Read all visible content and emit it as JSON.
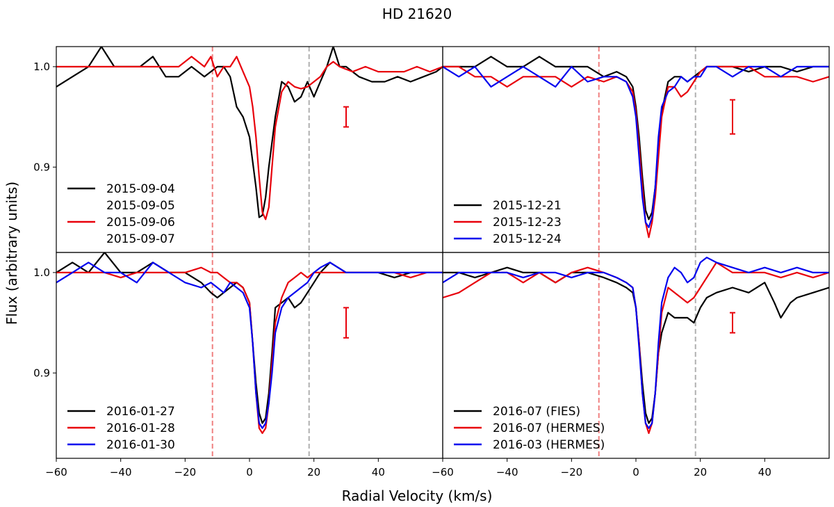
{
  "figure": {
    "title": "HD 21620",
    "xlabel": "Radial Velocity (km/s)",
    "ylabel": "Flux (arbitrary units)"
  },
  "chart_data": [
    {
      "type": "line",
      "panel": "top-left",
      "xlim": [
        -60,
        60
      ],
      "ylim": [
        0.815,
        1.02
      ],
      "xticks": [],
      "yticks": [
        "0.9",
        "1.0"
      ],
      "yticks_values": [
        0.9,
        1.0
      ],
      "vlines": [
        {
          "x": -11.5,
          "color": "#f08080"
        },
        {
          "x": 18.5,
          "color": "#b0b0b0"
        }
      ],
      "errorbar": {
        "x": 30,
        "y_low": 0.94,
        "y_high": 0.96,
        "color": "#e8000b"
      },
      "legend": {
        "position": "bottom-left",
        "entries": [
          "2015-09-04",
          "2015-09-05\n2015-09-06\n2015-09-07"
        ]
      },
      "series": [
        {
          "name": "2015-09-04",
          "color": "#000000",
          "x": [
            -60,
            -55,
            -50,
            -46,
            -42,
            -38,
            -34,
            -30,
            -26,
            -22,
            -18,
            -14,
            -10,
            -8,
            -6,
            -4,
            -2,
            0,
            2,
            3,
            4,
            5,
            6,
            8,
            10,
            12,
            14,
            16,
            18,
            20,
            22,
            24,
            26,
            28,
            30,
            34,
            38,
            42,
            46,
            50,
            54,
            58,
            60
          ],
          "y": [
            0.98,
            0.99,
            1.0,
            1.02,
            1.0,
            1.0,
            1.0,
            1.01,
            0.99,
            0.99,
            1.0,
            0.99,
            1.0,
            1.0,
            0.99,
            0.96,
            0.95,
            0.93,
            0.88,
            0.85,
            0.852,
            0.87,
            0.9,
            0.95,
            0.985,
            0.98,
            0.965,
            0.97,
            0.985,
            0.97,
            0.985,
            1.0,
            1.02,
            1.0,
            1.0,
            0.99,
            0.985,
            0.985,
            0.99,
            0.985,
            0.99,
            0.995,
            1.0
          ]
        },
        {
          "name": "2015-09-05 / 06 / 07",
          "color": "#e8000b",
          "x": [
            -60,
            -55,
            -50,
            -46,
            -42,
            -38,
            -34,
            -30,
            -26,
            -22,
            -18,
            -14,
            -12,
            -10,
            -8,
            -6,
            -4,
            -2,
            0,
            1,
            2,
            3,
            4,
            5,
            6,
            7,
            8,
            10,
            12,
            14,
            16,
            18,
            20,
            22,
            24,
            26,
            28,
            32,
            36,
            40,
            44,
            48,
            52,
            56,
            60
          ],
          "y": [
            1.0,
            1.0,
            1.0,
            1.0,
            1.0,
            1.0,
            1.0,
            1.0,
            1.0,
            1.0,
            1.01,
            1.0,
            1.01,
            0.99,
            1.0,
            1.0,
            1.01,
            0.995,
            0.98,
            0.96,
            0.93,
            0.89,
            0.855,
            0.848,
            0.86,
            0.9,
            0.94,
            0.975,
            0.985,
            0.98,
            0.978,
            0.98,
            0.985,
            0.99,
            1.0,
            1.005,
            1.0,
            0.995,
            1.0,
            0.995,
            0.995,
            0.995,
            1.0,
            0.995,
            1.0
          ]
        }
      ]
    },
    {
      "type": "line",
      "panel": "top-right",
      "xlim": [
        -60,
        60
      ],
      "ylim": [
        0.815,
        1.02
      ],
      "xticks": [],
      "yticks": [],
      "vlines": [
        {
          "x": -11.5,
          "color": "#f08080"
        },
        {
          "x": 18.5,
          "color": "#b0b0b0"
        }
      ],
      "errorbar": {
        "x": 30,
        "y_low": 0.933,
        "y_high": 0.967,
        "color": "#e8000b"
      },
      "legend": {
        "position": "bottom-left",
        "entries": [
          "2015-12-21",
          "2015-12-23",
          "2015-12-24"
        ]
      },
      "series": [
        {
          "name": "2015-12-21",
          "color": "#000000",
          "x": [
            -60,
            -55,
            -50,
            -45,
            -40,
            -35,
            -30,
            -25,
            -20,
            -15,
            -10,
            -6,
            -3,
            -1,
            0,
            1,
            2,
            3,
            4,
            5,
            6,
            7,
            8,
            10,
            12,
            14,
            16,
            18,
            20,
            22,
            25,
            30,
            35,
            40,
            45,
            50,
            55,
            60
          ],
          "y": [
            1.0,
            1.0,
            1.0,
            1.01,
            1.0,
            1.0,
            1.01,
            1.0,
            1.0,
            1.0,
            0.99,
            0.995,
            0.99,
            0.98,
            0.96,
            0.93,
            0.89,
            0.857,
            0.848,
            0.855,
            0.88,
            0.92,
            0.955,
            0.985,
            0.99,
            0.99,
            0.985,
            0.99,
            0.995,
            1.0,
            1.0,
            1.0,
            0.995,
            1.0,
            1.0,
            0.995,
            1.0,
            1.0
          ]
        },
        {
          "name": "2015-12-23",
          "color": "#e8000b",
          "x": [
            -60,
            -55,
            -50,
            -45,
            -40,
            -35,
            -30,
            -25,
            -20,
            -15,
            -10,
            -6,
            -3,
            -1,
            0,
            1,
            2,
            3,
            4,
            5,
            6,
            7,
            8,
            10,
            12,
            14,
            16,
            18,
            20,
            22,
            25,
            30,
            35,
            40,
            45,
            50,
            55,
            60
          ],
          "y": [
            1.0,
            1.0,
            0.99,
            0.99,
            0.98,
            0.99,
            0.99,
            0.99,
            0.98,
            0.99,
            0.985,
            0.99,
            0.985,
            0.975,
            0.955,
            0.92,
            0.88,
            0.845,
            0.83,
            0.845,
            0.87,
            0.91,
            0.95,
            0.98,
            0.98,
            0.97,
            0.975,
            0.985,
            0.995,
            1.0,
            1.0,
            1.0,
            1.0,
            0.99,
            0.99,
            0.99,
            0.985,
            0.99
          ]
        },
        {
          "name": "2015-12-24",
          "color": "#0000ee",
          "x": [
            -60,
            -55,
            -50,
            -45,
            -40,
            -35,
            -30,
            -25,
            -20,
            -15,
            -10,
            -6,
            -3,
            -1,
            0,
            1,
            2,
            3,
            4,
            5,
            6,
            7,
            8,
            10,
            12,
            14,
            16,
            18,
            20,
            22,
            25,
            30,
            35,
            40,
            45,
            50,
            55,
            60
          ],
          "y": [
            1.0,
            0.99,
            1.0,
            0.98,
            0.99,
            1.0,
            0.99,
            0.98,
            1.0,
            0.985,
            0.99,
            0.99,
            0.985,
            0.97,
            0.95,
            0.91,
            0.87,
            0.845,
            0.84,
            0.85,
            0.88,
            0.93,
            0.96,
            0.975,
            0.98,
            0.99,
            0.985,
            0.99,
            0.99,
            1.0,
            1.0,
            0.99,
            1.0,
            1.0,
            0.99,
            1.0,
            1.0,
            1.0
          ]
        }
      ]
    },
    {
      "type": "line",
      "panel": "bottom-left",
      "xlim": [
        -60,
        60
      ],
      "ylim": [
        0.815,
        1.02
      ],
      "xticks": [
        "−60",
        "−40",
        "−20",
        "0",
        "20",
        "40"
      ],
      "xticks_values": [
        -60,
        -40,
        -20,
        0,
        20,
        40
      ],
      "yticks": [
        "0.9",
        "1.0"
      ],
      "yticks_values": [
        0.9,
        1.0
      ],
      "vlines": [
        {
          "x": -11.5,
          "color": "#f08080"
        },
        {
          "x": 18.5,
          "color": "#b0b0b0"
        }
      ],
      "errorbar": {
        "x": 30,
        "y_low": 0.935,
        "y_high": 0.965,
        "color": "#e8000b"
      },
      "legend": {
        "position": "bottom-left",
        "entries": [
          "2016-01-27",
          "2016-01-28",
          "2016-01-30"
        ]
      },
      "series": [
        {
          "name": "2016-01-27",
          "color": "#000000",
          "x": [
            -60,
            -55,
            -50,
            -45,
            -40,
            -35,
            -30,
            -25,
            -20,
            -15,
            -12,
            -10,
            -8,
            -6,
            -4,
            -2,
            0,
            1,
            2,
            3,
            4,
            5,
            6,
            7,
            8,
            10,
            12,
            14,
            16,
            18,
            20,
            22,
            25,
            30,
            35,
            40,
            45,
            50,
            55,
            60
          ],
          "y": [
            1.0,
            1.01,
            1.0,
            1.02,
            1.0,
            1.0,
            1.01,
            1.0,
            1.0,
            0.99,
            0.98,
            0.975,
            0.98,
            0.985,
            0.99,
            0.985,
            0.97,
            0.93,
            0.89,
            0.86,
            0.85,
            0.855,
            0.88,
            0.92,
            0.965,
            0.97,
            0.975,
            0.965,
            0.97,
            0.98,
            0.99,
            1.0,
            1.01,
            1.0,
            1.0,
            1.0,
            0.995,
            1.0,
            1.0,
            1.0
          ]
        },
        {
          "name": "2016-01-28",
          "color": "#e8000b",
          "x": [
            -60,
            -55,
            -50,
            -45,
            -40,
            -35,
            -30,
            -25,
            -20,
            -15,
            -12,
            -10,
            -8,
            -6,
            -4,
            -2,
            0,
            1,
            2,
            3,
            4,
            5,
            6,
            7,
            8,
            10,
            12,
            14,
            16,
            18,
            20,
            22,
            25,
            30,
            35,
            40,
            45,
            50,
            55,
            60
          ],
          "y": [
            1.0,
            1.0,
            1.0,
            1.0,
            0.995,
            1.0,
            1.0,
            1.0,
            1.0,
            1.005,
            1.0,
            1.0,
            0.995,
            0.99,
            0.99,
            0.985,
            0.97,
            0.93,
            0.88,
            0.845,
            0.84,
            0.845,
            0.87,
            0.91,
            0.95,
            0.975,
            0.99,
            0.995,
            1.0,
            0.995,
            1.0,
            1.0,
            1.0,
            1.0,
            1.0,
            1.0,
            1.0,
            0.995,
            1.0,
            1.0
          ]
        },
        {
          "name": "2016-01-30",
          "color": "#0000ee",
          "x": [
            -60,
            -55,
            -50,
            -45,
            -40,
            -35,
            -30,
            -25,
            -20,
            -15,
            -12,
            -10,
            -8,
            -6,
            -4,
            -2,
            0,
            1,
            2,
            3,
            4,
            5,
            6,
            7,
            8,
            10,
            12,
            14,
            16,
            18,
            20,
            22,
            25,
            30,
            35,
            40,
            45,
            50,
            55,
            60
          ],
          "y": [
            0.99,
            1.0,
            1.01,
            1.0,
            1.0,
            0.99,
            1.01,
            1.0,
            0.99,
            0.985,
            0.99,
            0.985,
            0.98,
            0.99,
            0.985,
            0.98,
            0.965,
            0.93,
            0.88,
            0.85,
            0.845,
            0.85,
            0.87,
            0.9,
            0.94,
            0.965,
            0.975,
            0.98,
            0.985,
            0.99,
            1.0,
            1.005,
            1.01,
            1.0,
            1.0,
            1.0,
            1.0,
            1.0,
            1.0,
            1.0
          ]
        }
      ]
    },
    {
      "type": "line",
      "panel": "bottom-right",
      "xlim": [
        -60,
        60
      ],
      "ylim": [
        0.815,
        1.02
      ],
      "xticks": [
        "−60",
        "−40",
        "−20",
        "0",
        "20",
        "40"
      ],
      "xticks_values": [
        -60,
        -40,
        -20,
        0,
        20,
        40
      ],
      "yticks": [],
      "vlines": [
        {
          "x": -11.5,
          "color": "#f08080"
        },
        {
          "x": 18.5,
          "color": "#b0b0b0"
        }
      ],
      "errorbar": {
        "x": 30,
        "y_low": 0.94,
        "y_high": 0.96,
        "color": "#e8000b"
      },
      "legend": {
        "position": "bottom-left",
        "entries": [
          "2016-07 (FIES)",
          "2016-07 (HERMES)",
          "2016-03 (HERMES)"
        ]
      },
      "series": [
        {
          "name": "2016-07 (FIES)",
          "color": "#000000",
          "x": [
            -60,
            -55,
            -50,
            -45,
            -40,
            -35,
            -30,
            -25,
            -20,
            -15,
            -10,
            -6,
            -3,
            -1,
            0,
            1,
            2,
            3,
            4,
            5,
            6,
            7,
            8,
            10,
            12,
            14,
            16,
            18,
            20,
            22,
            25,
            30,
            35,
            40,
            43,
            45,
            48,
            50,
            55,
            60
          ],
          "y": [
            1.0,
            1.0,
            0.995,
            1.0,
            1.005,
            1.0,
            1.0,
            0.99,
            1.0,
            1.0,
            0.995,
            0.99,
            0.985,
            0.98,
            0.965,
            0.93,
            0.89,
            0.86,
            0.85,
            0.855,
            0.88,
            0.92,
            0.94,
            0.96,
            0.955,
            0.955,
            0.955,
            0.95,
            0.965,
            0.975,
            0.98,
            0.985,
            0.98,
            0.99,
            0.97,
            0.955,
            0.97,
            0.975,
            0.98,
            0.985
          ]
        },
        {
          "name": "2016-07 (HERMES)",
          "color": "#e8000b",
          "x": [
            -60,
            -55,
            -50,
            -45,
            -40,
            -35,
            -30,
            -25,
            -20,
            -15,
            -10,
            -6,
            -3,
            -1,
            0,
            1,
            2,
            3,
            4,
            5,
            6,
            7,
            8,
            10,
            12,
            14,
            16,
            18,
            20,
            22,
            25,
            30,
            35,
            40,
            45,
            50,
            55,
            60
          ],
          "y": [
            0.975,
            0.98,
            0.99,
            1.0,
            1.0,
            0.99,
            1.0,
            0.99,
            1.0,
            1.005,
            1.0,
            0.995,
            0.99,
            0.985,
            0.965,
            0.93,
            0.88,
            0.85,
            0.84,
            0.85,
            0.88,
            0.92,
            0.96,
            0.985,
            0.98,
            0.975,
            0.97,
            0.975,
            0.985,
            0.995,
            1.01,
            1.0,
            1.0,
            1.0,
            0.995,
            1.0,
            0.995,
            1.0
          ]
        },
        {
          "name": "2016-03 (HERMES)",
          "color": "#0000ee",
          "x": [
            -60,
            -55,
            -50,
            -45,
            -40,
            -35,
            -30,
            -25,
            -20,
            -15,
            -10,
            -6,
            -3,
            -1,
            0,
            1,
            2,
            3,
            4,
            5,
            6,
            7,
            8,
            10,
            12,
            14,
            16,
            18,
            20,
            22,
            25,
            30,
            35,
            40,
            45,
            50,
            55,
            60
          ],
          "y": [
            0.99,
            1.0,
            1.0,
            1.0,
            1.0,
            0.995,
            1.0,
            1.0,
            0.995,
            1.0,
            1.0,
            0.995,
            0.99,
            0.985,
            0.965,
            0.925,
            0.88,
            0.85,
            0.845,
            0.85,
            0.88,
            0.93,
            0.97,
            0.995,
            1.005,
            1.0,
            0.99,
            0.995,
            1.01,
            1.015,
            1.01,
            1.005,
            1.0,
            1.005,
            1.0,
            1.005,
            1.0,
            1.0
          ]
        }
      ]
    }
  ]
}
